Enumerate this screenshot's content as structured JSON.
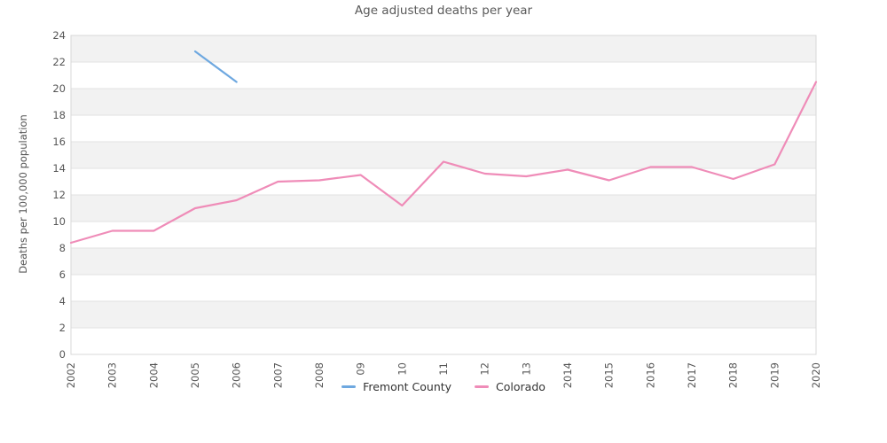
{
  "chart_data": {
    "type": "line",
    "title": "Age adjusted deaths per year",
    "ylabel": "Deaths per 100,000 population",
    "xlabel": "",
    "ylim": [
      0,
      24
    ],
    "ytick_step": 2,
    "xlim": [
      2002,
      2020
    ],
    "xtick_years": [
      2002,
      2003,
      2004,
      2005,
      2006,
      2007,
      2008,
      2009,
      2010,
      2011,
      2012,
      2013,
      2014,
      2015,
      2016,
      2017,
      2018,
      2019,
      2020
    ],
    "xtick_labels": [
      "2002",
      "2003",
      "2004",
      "2005",
      "2006",
      "2007",
      "2008",
      "09",
      "10",
      "11",
      "12",
      "13",
      "2014",
      "2015",
      "2016",
      "2017",
      "2018",
      "2019",
      "2020"
    ],
    "grid": "horizontal",
    "legend_position": "bottom",
    "series": [
      {
        "name": "Fremont County",
        "color": "#6ea8e0",
        "x": [
          2005,
          2006
        ],
        "values": [
          22.8,
          20.5
        ]
      },
      {
        "name": "Colorado",
        "color": "#ef8cb8",
        "x": [
          2002,
          2003,
          2004,
          2005,
          2006,
          2007,
          2008,
          2009,
          2010,
          2011,
          2012,
          2013,
          2014,
          2015,
          2016,
          2017,
          2018,
          2019,
          2020
        ],
        "values": [
          8.4,
          9.3,
          9.3,
          11.0,
          11.6,
          13.0,
          13.1,
          13.5,
          11.2,
          14.5,
          13.6,
          13.4,
          13.9,
          13.1,
          14.1,
          14.1,
          13.2,
          14.3,
          20.5
        ]
      }
    ]
  },
  "legend": {
    "items": [
      {
        "label": "Fremont County",
        "color": "#6ea8e0"
      },
      {
        "label": "Colorado",
        "color": "#ef8cb8"
      }
    ]
  },
  "colors": {
    "band": "#f2f2f2",
    "grid": "#e1e1e1",
    "border": "#d8d8d8",
    "tick_text": "#555555",
    "title_text": "#595959",
    "legend_text": "#333333"
  }
}
